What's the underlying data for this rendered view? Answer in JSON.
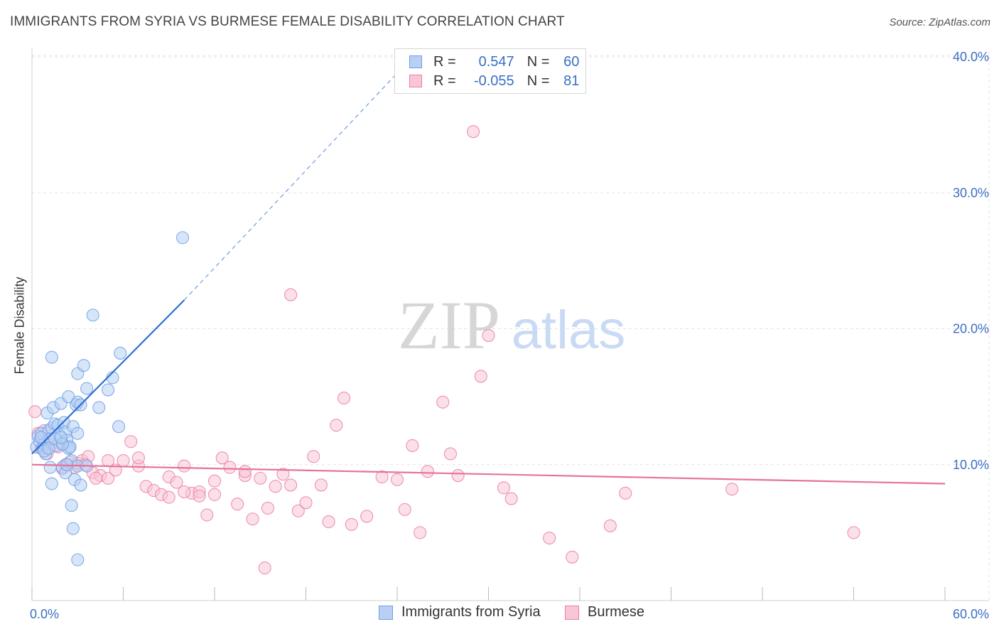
{
  "title": "IMMIGRANTS FROM SYRIA VS BURMESE FEMALE DISABILITY CORRELATION CHART",
  "source": "Source: ZipAtlas.com",
  "watermark": {
    "zip": "ZIP",
    "atlas": "atlas"
  },
  "colors": {
    "blue": "#6fa0e6",
    "blue_fill": "#b7d0f4",
    "blue_line": "#2f6fd3",
    "pink": "#ec7fa3",
    "pink_fill": "#f8c6d7",
    "pink_line": "#e5739b",
    "axis_text": "#3a6fc4",
    "grid": "#e3e3e3"
  },
  "legend": {
    "rows": [
      {
        "r_label": "R =",
        "r_value": "0.547",
        "n_label": "N =",
        "n_value": "60",
        "color": "blue"
      },
      {
        "r_label": "R =",
        "r_value": "-0.055",
        "n_label": "N =",
        "n_value": "81",
        "color": "pink"
      }
    ]
  },
  "bottom_legend": {
    "syria": "Immigrants from Syria",
    "burmese": "Burmese"
  },
  "chart_data": {
    "type": "scatter",
    "title": "IMMIGRANTS FROM SYRIA VS BURMESE FEMALE DISABILITY CORRELATION CHART",
    "xlabel": "",
    "ylabel": "Female Disability",
    "xlim": [
      0,
      60
    ],
    "ylim": [
      0,
      40
    ],
    "x_tick_labels": [
      "0.0%",
      "60.0%"
    ],
    "y_ticks": [
      10,
      20,
      30,
      40
    ],
    "y_tick_labels": [
      "10.0%",
      "20.0%",
      "30.0%",
      "40.0%"
    ],
    "grid": true,
    "series": [
      {
        "name": "Immigrants from Syria",
        "color": "blue",
        "trend": {
          "x": [
            0,
            10
          ],
          "y": [
            10.8,
            22.1
          ],
          "dashed_to": [
            25,
            40
          ]
        },
        "points": [
          [
            0.3,
            11.3
          ],
          [
            0.4,
            12.1
          ],
          [
            0.5,
            11.7
          ],
          [
            0.6,
            12.3
          ],
          [
            0.7,
            11.2
          ],
          [
            0.8,
            11.5
          ],
          [
            0.9,
            10.8
          ],
          [
            1.0,
            13.8
          ],
          [
            1.1,
            12.5
          ],
          [
            1.2,
            11.9
          ],
          [
            1.3,
            12.7
          ],
          [
            1.4,
            14.2
          ],
          [
            1.5,
            13.0
          ],
          [
            1.6,
            11.4
          ],
          [
            1.7,
            12.9
          ],
          [
            1.8,
            12.2
          ],
          [
            1.9,
            14.5
          ],
          [
            2.0,
            11.6
          ],
          [
            2.1,
            13.1
          ],
          [
            2.2,
            12.4
          ],
          [
            2.3,
            11.8
          ],
          [
            2.4,
            15.0
          ],
          [
            2.5,
            11.3
          ],
          [
            2.6,
            10.3
          ],
          [
            2.7,
            12.8
          ],
          [
            2.9,
            14.4
          ],
          [
            3.0,
            14.6
          ],
          [
            3.2,
            14.4
          ],
          [
            1.2,
            9.8
          ],
          [
            1.3,
            8.6
          ],
          [
            2.0,
            9.8
          ],
          [
            2.2,
            9.4
          ],
          [
            2.4,
            11.2
          ],
          [
            2.5,
            11.3
          ],
          [
            2.6,
            7.0
          ],
          [
            2.8,
            8.9
          ],
          [
            3.0,
            9.9
          ],
          [
            3.2,
            8.5
          ],
          [
            3.6,
            9.9
          ],
          [
            3.0,
            16.7
          ],
          [
            3.4,
            17.3
          ],
          [
            1.3,
            17.9
          ],
          [
            3.6,
            15.6
          ],
          [
            4.0,
            21.0
          ],
          [
            4.4,
            14.2
          ],
          [
            5.0,
            15.5
          ],
          [
            5.3,
            16.4
          ],
          [
            5.7,
            12.8
          ],
          [
            5.8,
            18.2
          ],
          [
            9.9,
            26.7
          ],
          [
            2.7,
            5.3
          ],
          [
            3.0,
            3.0
          ],
          [
            0.6,
            12.0
          ],
          [
            0.8,
            11.0
          ],
          [
            1.5,
            11.9
          ],
          [
            3.0,
            12.3
          ],
          [
            2.0,
            11.5
          ],
          [
            1.1,
            11.2
          ],
          [
            1.9,
            12.0
          ],
          [
            2.3,
            10.0
          ]
        ]
      },
      {
        "name": "Burmese",
        "color": "pink",
        "trend": {
          "x": [
            0,
            60
          ],
          "y": [
            10.0,
            8.6
          ]
        },
        "points": [
          [
            0.2,
            13.9
          ],
          [
            0.4,
            12.3
          ],
          [
            0.6,
            11.2
          ],
          [
            0.8,
            12.5
          ],
          [
            1.0,
            10.8
          ],
          [
            1.3,
            11.5
          ],
          [
            1.7,
            11.3
          ],
          [
            2.0,
            9.7
          ],
          [
            2.2,
            10.0
          ],
          [
            2.5,
            10.2
          ],
          [
            2.8,
            9.8
          ],
          [
            3.0,
            10.1
          ],
          [
            3.3,
            10.3
          ],
          [
            3.7,
            10.6
          ],
          [
            4.0,
            9.4
          ],
          [
            4.5,
            9.2
          ],
          [
            5.0,
            9.0
          ],
          [
            5.5,
            9.6
          ],
          [
            6.0,
            10.3
          ],
          [
            6.5,
            11.7
          ],
          [
            7.0,
            9.9
          ],
          [
            7.5,
            8.4
          ],
          [
            8.0,
            8.1
          ],
          [
            8.5,
            7.8
          ],
          [
            9.0,
            9.1
          ],
          [
            9.5,
            8.7
          ],
          [
            10.0,
            9.9
          ],
          [
            10.5,
            7.9
          ],
          [
            11.0,
            8.0
          ],
          [
            11.5,
            6.3
          ],
          [
            12.0,
            8.8
          ],
          [
            12.5,
            10.5
          ],
          [
            13.0,
            9.8
          ],
          [
            13.5,
            7.1
          ],
          [
            14.0,
            9.2
          ],
          [
            14.5,
            6.0
          ],
          [
            15.0,
            9.0
          ],
          [
            15.5,
            6.8
          ],
          [
            16.0,
            8.4
          ],
          [
            16.5,
            9.3
          ],
          [
            17.0,
            8.5
          ],
          [
            17.5,
            6.6
          ],
          [
            18.0,
            7.2
          ],
          [
            18.5,
            10.6
          ],
          [
            19.0,
            8.5
          ],
          [
            19.5,
            5.8
          ],
          [
            20.0,
            12.9
          ],
          [
            20.5,
            14.9
          ],
          [
            21.0,
            5.6
          ],
          [
            22.0,
            6.2
          ],
          [
            23.0,
            9.1
          ],
          [
            24.0,
            8.9
          ],
          [
            24.5,
            6.7
          ],
          [
            25.0,
            11.4
          ],
          [
            25.5,
            5.0
          ],
          [
            26.0,
            9.5
          ],
          [
            27.0,
            14.6
          ],
          [
            27.5,
            10.8
          ],
          [
            28.0,
            9.2
          ],
          [
            29.0,
            34.5
          ],
          [
            29.5,
            16.5
          ],
          [
            30.0,
            19.5
          ],
          [
            31.0,
            8.3
          ],
          [
            31.5,
            7.5
          ],
          [
            34.0,
            4.6
          ],
          [
            35.5,
            3.2
          ],
          [
            38.0,
            5.5
          ],
          [
            39.0,
            7.9
          ],
          [
            46.0,
            8.2
          ],
          [
            54.0,
            5.0
          ],
          [
            17.0,
            22.5
          ],
          [
            15.3,
            2.4
          ],
          [
            7.0,
            10.5
          ],
          [
            5.0,
            10.3
          ],
          [
            10.0,
            8.0
          ],
          [
            11.0,
            7.7
          ],
          [
            9.0,
            7.6
          ],
          [
            12.0,
            7.8
          ],
          [
            14.0,
            9.5
          ],
          [
            3.5,
            10.0
          ],
          [
            4.2,
            9.0
          ]
        ]
      }
    ]
  }
}
